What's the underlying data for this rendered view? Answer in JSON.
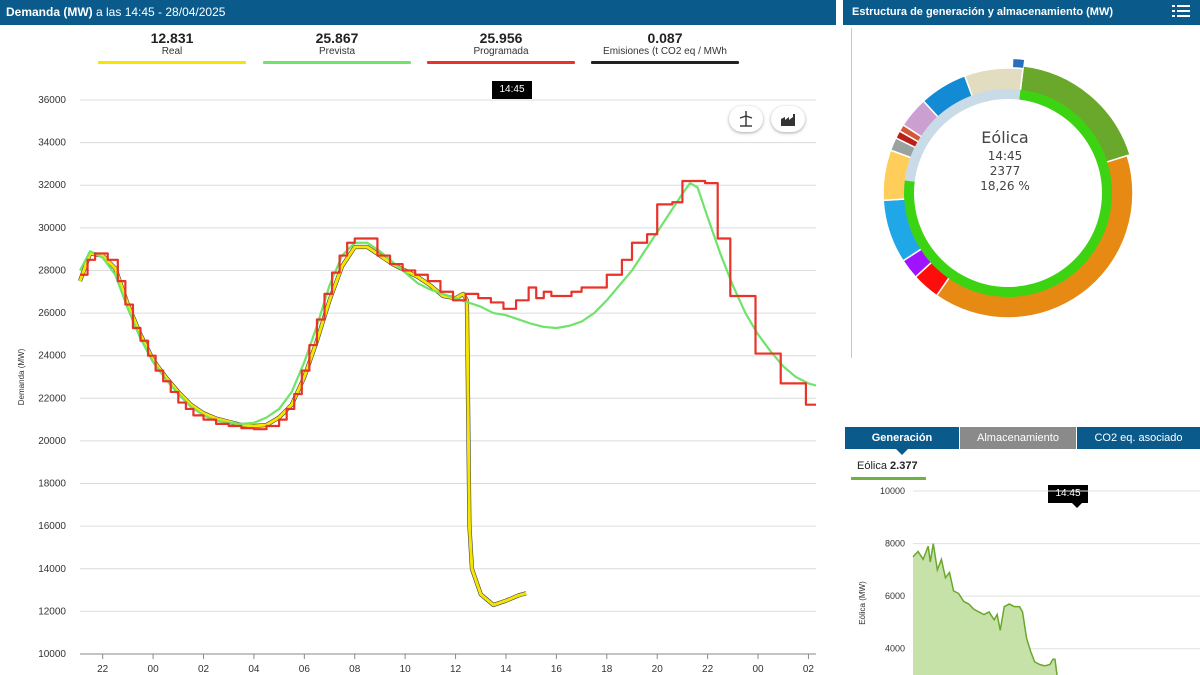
{
  "header": {
    "title_bold": "Demanda (MW)",
    "title_rest": " a las 14:45 - 28/04/2025"
  },
  "right_header": {
    "title": "Estructura de generación y almacenamiento (MW)",
    "menu_icon": "hamburger-list-icon"
  },
  "legend": [
    {
      "value": "12.831",
      "label": "Real",
      "color": "#f5e500"
    },
    {
      "value": "25.867",
      "label": "Prevista",
      "color": "#6fe36a"
    },
    {
      "value": "25.956",
      "label": "Programada",
      "color": "#e8332a"
    },
    {
      "value": "0.087",
      "label": "Emisiones (t CO2 eq / MWh",
      "color": "#222222"
    }
  ],
  "tooltip_main": "14:45",
  "tooltip_mini": "14:45",
  "icon_buttons": [
    "wind-turbine-icon",
    "factory-icon"
  ],
  "chart_data": [
    {
      "type": "line",
      "title": "",
      "ylabel": "Demanda (MW)",
      "ylim": [
        10000,
        36000
      ],
      "yticks": [
        "10000",
        "12000",
        "14000",
        "16000",
        "18000",
        "20000",
        "22000",
        "24000",
        "26000",
        "28000",
        "30000",
        "32000",
        "34000",
        "36000"
      ],
      "xticks": [
        "22",
        "00",
        "02",
        "04",
        "06",
        "08",
        "10",
        "12",
        "14",
        "16",
        "18",
        "20",
        "22",
        "00",
        "02"
      ],
      "xlim_hours": [
        21.1,
        50.3
      ],
      "series": [
        {
          "name": "Real",
          "color": "#f5e500",
          "points": [
            [
              21.1,
              27500
            ],
            [
              21.5,
              28800
            ],
            [
              22,
              28700
            ],
            [
              22.5,
              28100
            ],
            [
              23,
              26400
            ],
            [
              23.5,
              25000
            ],
            [
              24,
              23800
            ],
            [
              24.5,
              23000
            ],
            [
              25,
              22300
            ],
            [
              25.5,
              21700
            ],
            [
              26,
              21300
            ],
            [
              26.5,
              21050
            ],
            [
              27,
              20900
            ],
            [
              27.5,
              20750
            ],
            [
              28,
              20700
            ],
            [
              28.5,
              20750
            ],
            [
              29,
              21100
            ],
            [
              29.5,
              21700
            ],
            [
              30,
              23000
            ],
            [
              30.5,
              24700
            ],
            [
              31,
              26600
            ],
            [
              31.5,
              28200
            ],
            [
              32,
              29100
            ],
            [
              32.5,
              29100
            ],
            [
              33,
              28700
            ],
            [
              33.5,
              28300
            ],
            [
              34,
              28000
            ],
            [
              34.5,
              27700
            ],
            [
              35,
              27300
            ],
            [
              35.5,
              26800
            ],
            [
              36,
              26700
            ],
            [
              36.3,
              26900
            ],
            [
              36.45,
              26600
            ],
            [
              36.55,
              16000
            ],
            [
              36.65,
              14000
            ],
            [
              37,
              12800
            ],
            [
              37.5,
              12300
            ],
            [
              38,
              12500
            ],
            [
              38.5,
              12750
            ],
            [
              38.8,
              12850
            ]
          ]
        },
        {
          "name": "Prevista",
          "color": "#6fe36a",
          "points": [
            [
              21.1,
              28000
            ],
            [
              21.5,
              28900
            ],
            [
              22,
              28600
            ],
            [
              22.5,
              27800
            ],
            [
              23,
              26200
            ],
            [
              23.5,
              24800
            ],
            [
              24,
              23700
            ],
            [
              24.5,
              22900
            ],
            [
              25,
              22200
            ],
            [
              25.5,
              21600
            ],
            [
              26,
              21200
            ],
            [
              26.5,
              20950
            ],
            [
              27,
              20850
            ],
            [
              27.5,
              20800
            ],
            [
              28,
              20850
            ],
            [
              28.5,
              21100
            ],
            [
              29,
              21500
            ],
            [
              29.5,
              22300
            ],
            [
              30,
              23700
            ],
            [
              30.5,
              25400
            ],
            [
              31,
              27300
            ],
            [
              31.5,
              28700
            ],
            [
              32,
              29300
            ],
            [
              32.5,
              29300
            ],
            [
              33,
              28900
            ],
            [
              33.5,
              28400
            ],
            [
              34,
              27900
            ],
            [
              34.5,
              27400
            ],
            [
              35,
              27100
            ],
            [
              35.5,
              26900
            ],
            [
              36,
              26700
            ],
            [
              36.5,
              26500
            ],
            [
              37,
              26300
            ],
            [
              37.5,
              26000
            ],
            [
              38,
              25900
            ],
            [
              38.5,
              25700
            ],
            [
              39,
              25500
            ],
            [
              39.5,
              25350
            ],
            [
              40,
              25300
            ],
            [
              40.5,
              25400
            ],
            [
              41,
              25600
            ],
            [
              41.5,
              26000
            ],
            [
              42,
              26600
            ],
            [
              42.5,
              27300
            ],
            [
              43,
              28000
            ],
            [
              43.5,
              28900
            ],
            [
              44,
              29800
            ],
            [
              44.5,
              30700
            ],
            [
              45,
              31600
            ],
            [
              45.3,
              32100
            ],
            [
              45.6,
              31900
            ],
            [
              46,
              30500
            ],
            [
              46.5,
              28800
            ],
            [
              47,
              27300
            ],
            [
              47.5,
              26000
            ],
            [
              48,
              25000
            ],
            [
              48.5,
              24200
            ],
            [
              49,
              23500
            ],
            [
              49.5,
              23000
            ],
            [
              50,
              22700
            ],
            [
              50.3,
              22600
            ]
          ]
        },
        {
          "name": "Programada",
          "color": "#e8332a",
          "steps": [
            [
              21.1,
              27800
            ],
            [
              21.4,
              28500
            ],
            [
              21.7,
              28800
            ],
            [
              22.2,
              28500
            ],
            [
              22.6,
              27500
            ],
            [
              22.9,
              26400
            ],
            [
              23.2,
              25300
            ],
            [
              23.5,
              24700
            ],
            [
              23.8,
              24000
            ],
            [
              24.1,
              23300
            ],
            [
              24.4,
              22800
            ],
            [
              24.7,
              22300
            ],
            [
              25.0,
              21800
            ],
            [
              25.3,
              21500
            ],
            [
              25.6,
              21200
            ],
            [
              26.0,
              21000
            ],
            [
              26.5,
              20800
            ],
            [
              27.0,
              20700
            ],
            [
              27.5,
              20600
            ],
            [
              28.0,
              20550
            ],
            [
              28.5,
              20700
            ],
            [
              29.0,
              21000
            ],
            [
              29.3,
              21500
            ],
            [
              29.6,
              22200
            ],
            [
              29.9,
              23300
            ],
            [
              30.2,
              24500
            ],
            [
              30.5,
              25700
            ],
            [
              30.8,
              26900
            ],
            [
              31.1,
              27900
            ],
            [
              31.4,
              28700
            ],
            [
              31.7,
              29300
            ],
            [
              32.0,
              29500
            ],
            [
              32.9,
              28700
            ],
            [
              33.4,
              28300
            ],
            [
              33.9,
              28000
            ],
            [
              34.4,
              27800
            ],
            [
              34.9,
              27500
            ],
            [
              35.4,
              27000
            ],
            [
              35.9,
              26600
            ],
            [
              36.4,
              26900
            ],
            [
              36.9,
              26700
            ],
            [
              37.4,
              26500
            ],
            [
              37.9,
              26200
            ],
            [
              38.4,
              26600
            ],
            [
              38.9,
              27200
            ],
            [
              39.2,
              26700
            ],
            [
              39.5,
              27000
            ],
            [
              39.8,
              26800
            ],
            [
              40.2,
              26800
            ],
            [
              40.6,
              27000
            ],
            [
              41.0,
              27200
            ],
            [
              42.0,
              27800
            ],
            [
              42.6,
              28500
            ],
            [
              43.0,
              29300
            ],
            [
              43.6,
              29700
            ],
            [
              44.0,
              31100
            ],
            [
              44.6,
              31200
            ],
            [
              45.0,
              32200
            ],
            [
              45.9,
              32100
            ],
            [
              46.4,
              29500
            ],
            [
              46.9,
              26800
            ],
            [
              47.9,
              24100
            ],
            [
              48.9,
              22700
            ],
            [
              49.9,
              21700
            ],
            [
              50.3,
              21700
            ]
          ]
        }
      ]
    },
    {
      "type": "pie",
      "title": "Estructura de generación y almacenamiento (MW)",
      "highlight": {
        "label": "Eólica",
        "time": "14:45",
        "value": "2377",
        "percent": "18,26 %"
      },
      "slices": [
        {
          "name": "Eólica",
          "percent": 18.26,
          "color": "#6aa82b"
        },
        {
          "name": "segment-orange-large",
          "percent": 39.5,
          "color": "#e68a13"
        },
        {
          "name": "segment-red",
          "percent": 3.6,
          "color": "#ff0d0d"
        },
        {
          "name": "segment-purple",
          "percent": 2.6,
          "color": "#a013ff"
        },
        {
          "name": "segment-light-blue",
          "percent": 8.2,
          "color": "#1fa7e8"
        },
        {
          "name": "segment-yellow",
          "percent": 6.5,
          "color": "#ffce5a"
        },
        {
          "name": "segment-gray",
          "percent": 1.7,
          "color": "#9aa2a0"
        },
        {
          "name": "segment-darkred",
          "percent": 1.0,
          "color": "#b8211a"
        },
        {
          "name": "segment-brick",
          "percent": 0.9,
          "color": "#d4573a"
        },
        {
          "name": "segment-lilac",
          "percent": 4.0,
          "color": "#cc9fd1"
        },
        {
          "name": "segment-blue",
          "percent": 6.2,
          "color": "#138ad4"
        },
        {
          "name": "segment-beige",
          "percent": 7.54,
          "color": "#e2dcc0"
        }
      ],
      "inner_ring": [
        {
          "name": "storage-light",
          "percent": 25,
          "color": "#c9dbe6"
        },
        {
          "name": "generation-green",
          "percent": 75,
          "color": "#3cd412"
        }
      ]
    },
    {
      "type": "area",
      "title": "",
      "ylabel": "Eólica (MW)",
      "ylim": [
        3000,
        10000
      ],
      "yticks": [
        "4000",
        "6000",
        "8000",
        "10000"
      ],
      "series": [
        {
          "name": "Eólica",
          "color": "#6aa82b",
          "points": [
            [
              0,
              7500
            ],
            [
              0.5,
              7700
            ],
            [
              1,
              7400
            ],
            [
              1.5,
              7900
            ],
            [
              1.7,
              7300
            ],
            [
              2,
              8000
            ],
            [
              2.4,
              7000
            ],
            [
              2.8,
              7400
            ],
            [
              3.2,
              6700
            ],
            [
              3.6,
              6900
            ],
            [
              4,
              6200
            ],
            [
              4.5,
              6100
            ],
            [
              5,
              5800
            ],
            [
              5.5,
              5700
            ],
            [
              6,
              5500
            ],
            [
              6.5,
              5400
            ],
            [
              7,
              5300
            ],
            [
              7.5,
              5400
            ],
            [
              8,
              5100
            ],
            [
              8.3,
              5300
            ],
            [
              8.6,
              4700
            ],
            [
              9,
              5600
            ],
            [
              9.5,
              5700
            ],
            [
              10,
              5600
            ],
            [
              10.5,
              5600
            ],
            [
              10.8,
              5400
            ],
            [
              11.2,
              4400
            ],
            [
              11.6,
              3900
            ],
            [
              12,
              3500
            ],
            [
              12.5,
              3400
            ],
            [
              13,
              3350
            ],
            [
              13.5,
              3400
            ],
            [
              13.8,
              3600
            ],
            [
              14,
              3600
            ],
            [
              14.2,
              3000
            ]
          ]
        }
      ]
    }
  ],
  "tabs": [
    {
      "label": "Generación",
      "state": "active"
    },
    {
      "label": "Almacenamiento",
      "state": "inactive"
    },
    {
      "label": "CO2 eq. asociado",
      "state": "inactive"
    }
  ],
  "mini": {
    "label": "Eólica",
    "value": "2.377"
  }
}
